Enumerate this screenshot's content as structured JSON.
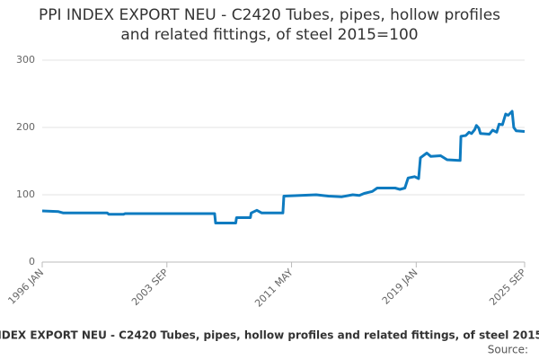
{
  "chart_data": {
    "type": "line",
    "title": "PPI INDEX EXPORT NEU - C2420 Tubes, pipes, hollow profiles and related fittings, of steel 2015=100",
    "source_label": "Source:",
    "x": [
      1996.0,
      1997.0,
      1997.3,
      1998.0,
      2000.0,
      2000.1,
      2001.0,
      2001.1,
      2006.6,
      2006.66,
      2007.9,
      2007.95,
      2008.8,
      2008.85,
      2009.2,
      2009.5,
      2010.8,
      2010.86,
      2012.85,
      2013.6,
      2014.4,
      2015.1,
      2015.5,
      2015.8,
      2016.3,
      2016.6,
      2017.7,
      2018.0,
      2018.3,
      2018.5,
      2018.9,
      2019.15,
      2019.26,
      2019.65,
      2019.9,
      2020.5,
      2020.9,
      2021.7,
      2021.75,
      2022.05,
      2022.25,
      2022.4,
      2022.6,
      2022.7,
      2022.85,
      2022.95,
      2023.5,
      2023.7,
      2023.95,
      2024.1,
      2024.3,
      2024.5,
      2024.65,
      2024.9,
      2025.0,
      2025.15,
      2025.667
    ],
    "series": [
      {
        "name": "PPI INDEX EXPORT NEU - C2420",
        "color": "#0e7bc0",
        "values": [
          76,
          75,
          73,
          73,
          73,
          71,
          71,
          72,
          72,
          58,
          58,
          66,
          66,
          73,
          77,
          73,
          73,
          98,
          100,
          98,
          97,
          100,
          99,
          102,
          105,
          110,
          110,
          108,
          110,
          125,
          127,
          124,
          155,
          162,
          157,
          158,
          152,
          151,
          187,
          188,
          193,
          191,
          197,
          203,
          199,
          191,
          190,
          196,
          193,
          205,
          204,
          220,
          218,
          224,
          200,
          195,
          194
        ]
      }
    ],
    "xlim": [
      1996.0,
      2025.667
    ],
    "xticks": [
      {
        "value": 1996.0,
        "label": "1996 JAN"
      },
      {
        "value": 2003.667,
        "label": "2003 SEP"
      },
      {
        "value": 2011.333,
        "label": "2011 MAY"
      },
      {
        "value": 2019.0,
        "label": "2019 JAN"
      },
      {
        "value": 2025.667,
        "label": "2025 SEP"
      }
    ],
    "ylim": [
      0,
      300
    ],
    "yticks": [
      0,
      100,
      200,
      300
    ],
    "grid": true
  }
}
